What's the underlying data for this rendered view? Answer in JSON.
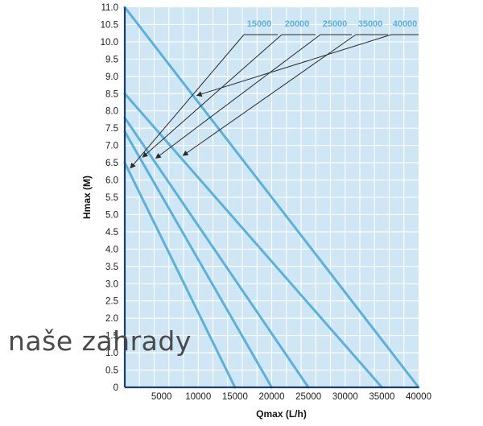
{
  "chart_data": {
    "type": "line",
    "xlabel": "Qmax (L/h)",
    "ylabel": "Hmax (M)",
    "xlim": [
      0,
      40000
    ],
    "ylim": [
      0,
      11
    ],
    "x_ticks": [
      "5000",
      "10000",
      "15000",
      "20000",
      "25000",
      "30000",
      "35000",
      "40000"
    ],
    "y_ticks": [
      "0",
      "0.5",
      "1.0",
      "1.5",
      "2.0",
      "2.5",
      "3.0",
      "3.5",
      "4.0",
      "4.5",
      "5.0",
      "5.5",
      "6.0",
      "6.5",
      "7.0",
      "7.5",
      "8.0",
      "8.5",
      "9.0",
      "9.5",
      "10.0",
      "10.5",
      "11.0"
    ],
    "grid": true,
    "legend_placement": "top-right",
    "series": [
      {
        "name": "15000",
        "x": [
          0,
          15000
        ],
        "y": [
          6.5,
          0
        ]
      },
      {
        "name": "20000",
        "x": [
          0,
          20000
        ],
        "y": [
          7.4,
          0
        ]
      },
      {
        "name": "25000",
        "x": [
          0,
          25000
        ],
        "y": [
          7.8,
          0
        ]
      },
      {
        "name": "35000",
        "x": [
          0,
          35000
        ],
        "y": [
          8.5,
          0
        ]
      },
      {
        "name": "40000",
        "x": [
          0,
          40000
        ],
        "y": [
          11.0,
          0
        ]
      }
    ]
  },
  "colors": {
    "plot_background": "#cfe6f5",
    "grid": "#ffffff",
    "series_line": "#5bb1dc",
    "axis": "#1a3c6e",
    "leader": "#2a2a2a",
    "label": "#5bb1dc"
  },
  "watermark": "naše zahrady"
}
